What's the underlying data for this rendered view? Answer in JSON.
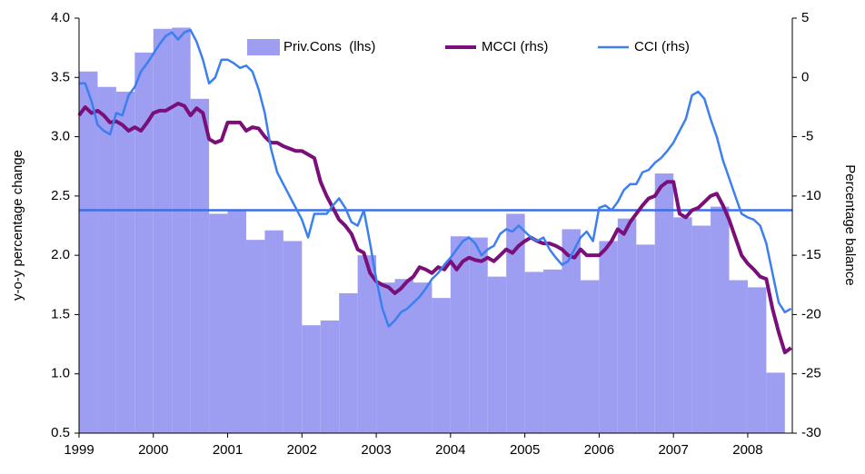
{
  "chart_data": {
    "type": "bar-line",
    "y_label": "y-o-y percentage change",
    "y2_label": "Percentage balance",
    "xlim": [
      1999,
      2008.6
    ],
    "xticks": [
      1999,
      2000,
      2001,
      2002,
      2003,
      2004,
      2005,
      2006,
      2007,
      2008
    ],
    "ylim": [
      0.5,
      4.0
    ],
    "yticks": [
      {
        "value": 0.5,
        "label": "0.5"
      },
      {
        "value": 1,
        "label": "1.0"
      },
      1.5,
      {
        "value": 2,
        "label": "2.0"
      },
      2.5,
      {
        "value": 3,
        "label": "3.0"
      },
      3.5,
      {
        "value": 4,
        "label": "4.0"
      }
    ],
    "y2lim": [
      -30,
      5
    ],
    "y2ticks": [
      -30,
      -25,
      -20,
      -15,
      -10,
      -5,
      0,
      5
    ],
    "hline": {
      "value": 2.38,
      "color": "#3d6fe8"
    },
    "x": [
      1999,
      1999.083,
      1999.167,
      1999.25,
      1999.333,
      1999.417,
      1999.5,
      1999.583,
      1999.667,
      1999.75,
      1999.833,
      1999.917,
      2000,
      2000.083,
      2000.167,
      2000.25,
      2000.333,
      2000.417,
      2000.5,
      2000.583,
      2000.667,
      2000.75,
      2000.833,
      2000.917,
      2001,
      2001.083,
      2001.167,
      2001.25,
      2001.333,
      2001.417,
      2001.5,
      2001.583,
      2001.667,
      2001.75,
      2001.833,
      2001.917,
      2002,
      2002.083,
      2002.167,
      2002.25,
      2002.333,
      2002.417,
      2002.5,
      2002.583,
      2002.667,
      2002.75,
      2002.833,
      2002.917,
      2003,
      2003.083,
      2003.167,
      2003.25,
      2003.333,
      2003.417,
      2003.5,
      2003.583,
      2003.667,
      2003.75,
      2003.833,
      2003.917,
      2004,
      2004.083,
      2004.167,
      2004.25,
      2004.333,
      2004.417,
      2004.5,
      2004.583,
      2004.667,
      2004.75,
      2004.833,
      2004.917,
      2005,
      2005.083,
      2005.167,
      2005.25,
      2005.333,
      2005.417,
      2005.5,
      2005.583,
      2005.667,
      2005.75,
      2005.833,
      2005.917,
      2006,
      2006.083,
      2006.167,
      2006.25,
      2006.333,
      2006.417,
      2006.5,
      2006.583,
      2006.667,
      2006.75,
      2006.833,
      2006.917,
      2007,
      2007.083,
      2007.167,
      2007.25,
      2007.333,
      2007.417,
      2007.5,
      2007.583,
      2007.667,
      2007.75,
      2007.833,
      2007.917,
      2008,
      2008.083,
      2008.167,
      2008.25,
      2008.333,
      2008.417,
      2008.5,
      2008.583
    ],
    "legend": "top",
    "series": [
      {
        "name": "Priv.Cons  (lhs)",
        "type": "bar",
        "color": "#9d9df2",
        "x": [
          1999,
          1999.25,
          1999.5,
          1999.75,
          2000,
          2000.25,
          2000.5,
          2000.75,
          2001,
          2001.25,
          2001.5,
          2001.75,
          2002,
          2002.25,
          2002.5,
          2002.75,
          2003,
          2003.25,
          2003.5,
          2003.75,
          2004,
          2004.25,
          2004.5,
          2004.75,
          2005,
          2005.25,
          2005.5,
          2005.75,
          2006,
          2006.25,
          2006.5,
          2006.75,
          2007,
          2007.25,
          2007.5,
          2007.75,
          2008,
          2008.25
        ],
        "values": [
          3.55,
          3.42,
          3.38,
          3.71,
          3.91,
          3.92,
          3.32,
          2.35,
          2.38,
          2.13,
          2.21,
          2.12,
          1.41,
          1.45,
          1.68,
          2.0,
          1.77,
          1.8,
          1.77,
          1.64,
          2.16,
          2.15,
          1.82,
          2.35,
          1.86,
          1.88,
          2.22,
          1.79,
          2.12,
          2.31,
          2.09,
          2.69,
          2.32,
          2.25,
          2.41,
          1.79,
          1.73,
          1.01
        ]
      },
      {
        "name": "MCCI (rhs)",
        "type": "line",
        "axis": "y2",
        "color": "#7a0f7a",
        "values": [
          -3.2,
          -2.5,
          -3.0,
          -2.8,
          -3.2,
          -3.8,
          -3.7,
          -4.0,
          -4.5,
          -4.2,
          -4.5,
          -3.8,
          -3.0,
          -2.8,
          -2.8,
          -2.5,
          -2.2,
          -2.4,
          -3.2,
          -2.6,
          -3.0,
          -5.2,
          -5.5,
          -5.3,
          -3.8,
          -3.8,
          -3.8,
          -4.5,
          -4.2,
          -4.3,
          -5.0,
          -5.5,
          -5.5,
          -5.8,
          -6.0,
          -6.2,
          -6.2,
          -6.5,
          -6.8,
          -8.8,
          -10,
          -11,
          -12,
          -12.5,
          -13.2,
          -14.5,
          -14.8,
          -16.5,
          -17.2,
          -17.5,
          -17.7,
          -18.2,
          -17.8,
          -17.2,
          -16.8,
          -16,
          -16.2,
          -16.5,
          -16,
          -16.2,
          -15.5,
          -16.2,
          -15.5,
          -15.2,
          -15.4,
          -15.5,
          -15.2,
          -15.5,
          -15,
          -14.5,
          -14.8,
          -14.2,
          -13.8,
          -13.5,
          -13.8,
          -14,
          -14,
          -14.2,
          -14.5,
          -15,
          -15.2,
          -14.5,
          -15,
          -15,
          -15,
          -14.5,
          -13.8,
          -12.8,
          -13.2,
          -12.2,
          -11.5,
          -10.8,
          -10.2,
          -10,
          -9.2,
          -8.8,
          -8.8,
          -11.5,
          -11.8,
          -11.2,
          -11,
          -10.5,
          -10,
          -9.8,
          -10.8,
          -12,
          -13.5,
          -15,
          -15.7,
          -16.2,
          -16.8,
          -17,
          -19.5,
          -21.5,
          -23.2,
          -22.8
        ]
      },
      {
        "name": "CCI (rhs)",
        "type": "line",
        "axis": "y2",
        "color": "#3d7ff0",
        "values": [
          -0.5,
          -0.5,
          -2,
          -4,
          -4.5,
          -4.8,
          -3,
          -3.2,
          -1.5,
          -0.8,
          0.5,
          1.2,
          2,
          2.8,
          3.5,
          3.8,
          3.2,
          3.8,
          4,
          3,
          1.5,
          -0.5,
          0,
          1.5,
          1.5,
          1.2,
          0.8,
          1.0,
          0.5,
          -1,
          -3,
          -6,
          -8,
          -9,
          -10,
          -11,
          -12,
          -13.5,
          -11.5,
          -11.5,
          -11.5,
          -10.8,
          -10.2,
          -11,
          -12.2,
          -12.5,
          -11.2,
          -14,
          -17,
          -19.5,
          -21,
          -20.5,
          -19.8,
          -19.5,
          -19,
          -18.5,
          -17.8,
          -17,
          -16.5,
          -15.8,
          -15.2,
          -14.5,
          -13.8,
          -13.5,
          -14,
          -15,
          -14.5,
          -14.2,
          -13.2,
          -12.8,
          -13,
          -12.5,
          -13,
          -13.5,
          -13.8,
          -13.5,
          -14.5,
          -15.2,
          -15.8,
          -15.5,
          -14.5,
          -13.5,
          -13,
          -13.8,
          -11,
          -10.8,
          -11.2,
          -10.5,
          -9.5,
          -9,
          -9,
          -8,
          -7.8,
          -7.2,
          -6.8,
          -6.2,
          -5.5,
          -4.5,
          -3.5,
          -1.5,
          -1.2,
          -1.8,
          -3.5,
          -5,
          -7,
          -8.5,
          -10,
          -11.5,
          -11.8,
          -12,
          -12.5,
          -14,
          -16.5,
          -19,
          -19.8,
          -19.5
        ]
      }
    ]
  }
}
